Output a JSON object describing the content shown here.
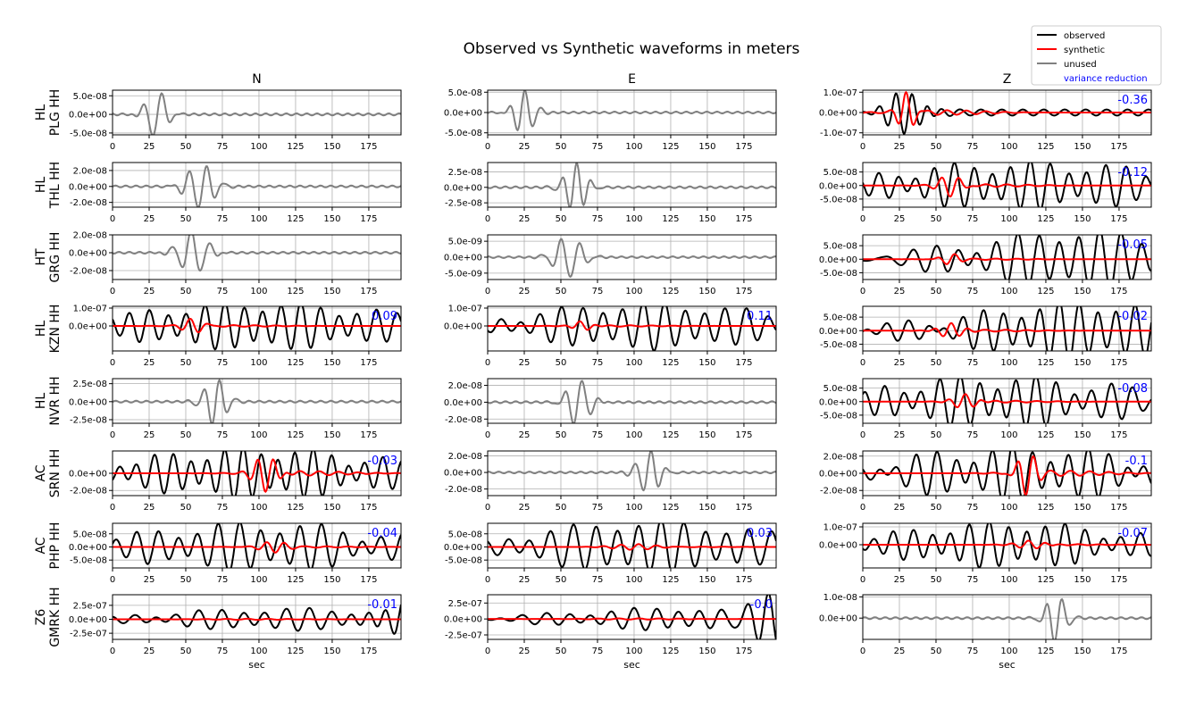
{
  "title": "Observed vs Synthetic waveforms in meters",
  "columns": [
    "N",
    "E",
    "Z"
  ],
  "xlabel": "sec",
  "legend": {
    "placement": "top-right",
    "entries": [
      {
        "label": "observed",
        "color": "#000000"
      },
      {
        "label": "synthetic",
        "color": "#ff0000"
      },
      {
        "label": "unused",
        "color": "#808080"
      },
      {
        "label": "variance reduction",
        "color": "#0000ff",
        "text_only": true
      }
    ]
  },
  "colors": {
    "observed": "#000000",
    "synthetic": "#ff0000",
    "unused": "#808080",
    "variance_reduction": "#0000ff"
  },
  "chart_data": {
    "type": "line",
    "xlim": [
      0,
      197
    ],
    "xticks": [
      0,
      25,
      50,
      75,
      100,
      125,
      150,
      175
    ],
    "grid": true,
    "rows": [
      {
        "network": "HL",
        "station": "PLG HH",
        "panels": [
          {
            "mode": "unused",
            "ylim": [
              -5.5e-08,
              6.5e-08
            ],
            "yticks": [
              {
                "v": 5e-08,
                "t": "5.0e-08"
              },
              {
                "v": 0,
                "t": "0.0e+00"
              },
              {
                "v": -5e-08,
                "t": "-5.0e-08"
              }
            ],
            "vr": "",
            "obs_amp": 6.5e-08,
            "obs_center": 30,
            "obs_width": 9,
            "obs_period": 13,
            "syn_amp": 0
          },
          {
            "mode": "unused",
            "ylim": [
              -5.5e-08,
              5.5e-08
            ],
            "yticks": [
              {
                "v": 5e-08,
                "t": "5.0e-08"
              },
              {
                "v": 0,
                "t": "0.0e+00"
              },
              {
                "v": -5e-08,
                "t": "-5.0e-08"
              }
            ],
            "vr": "",
            "obs_amp": 5.5e-08,
            "obs_center": 25,
            "obs_width": 9,
            "obs_period": 11,
            "syn_amp": 0
          },
          {
            "mode": "used",
            "ylim": [
              -1.1e-07,
              1.1e-07
            ],
            "yticks": [
              {
                "v": 1e-07,
                "t": "1.0e-07"
              },
              {
                "v": 0,
                "t": "0.0e+00"
              },
              {
                "v": -1e-07,
                "t": "-1.0e-07"
              }
            ],
            "vr": "-0.36",
            "obs_amp": 1e-07,
            "obs_center": 30,
            "obs_width": 16,
            "obs_period": 11,
            "obs_bg": 1.5e-08,
            "syn_amp": 9.5e-08,
            "syn_center": 30,
            "syn_width": 7,
            "syn_period": 11
          }
        ]
      },
      {
        "network": "HL",
        "station": "THL HH",
        "panels": [
          {
            "mode": "unused",
            "ylim": [
              -2.6e-08,
              3e-08
            ],
            "yticks": [
              {
                "v": 2e-08,
                "t": "2.0e-08"
              },
              {
                "v": 0,
                "t": "0.0e+00"
              },
              {
                "v": -2e-08,
                "t": "-2.0e-08"
              }
            ],
            "vr": "",
            "obs_amp": 2.8e-08,
            "obs_center": 60,
            "obs_width": 12,
            "obs_period": 12,
            "syn_amp": 0
          },
          {
            "mode": "unused",
            "ylim": [
              -3.2e-08,
              4e-08
            ],
            "yticks": [
              {
                "v": 2.5e-08,
                "t": "2.5e-08"
              },
              {
                "v": 0,
                "t": "0.0e+00"
              },
              {
                "v": -2.5e-08,
                "t": "-2.5e-08"
              }
            ],
            "vr": "",
            "obs_amp": 3.8e-08,
            "obs_center": 60,
            "obs_width": 10,
            "obs_period": 10,
            "syn_amp": 0
          },
          {
            "mode": "used",
            "ylim": [
              -8e-08,
              8.5e-08
            ],
            "yticks": [
              {
                "v": 5e-08,
                "t": "5.0e-08"
              },
              {
                "v": 0,
                "t": "0.0e+00"
              },
              {
                "v": -5e-08,
                "t": "-5.0e-08"
              }
            ],
            "vr": "-0.12",
            "obs_amp": 7e-08,
            "obs_center": 110,
            "obs_width": 120,
            "obs_period": 13,
            "obs_bg": 2.5e-08,
            "syn_amp": 4e-08,
            "syn_center": 60,
            "syn_width": 10,
            "syn_period": 12
          }
        ]
      },
      {
        "network": "HT",
        "station": "GRG HH",
        "panels": [
          {
            "mode": "unused",
            "ylim": [
              -3e-08,
              2e-08
            ],
            "yticks": [
              {
                "v": 2e-08,
                "t": "2.0e-08"
              },
              {
                "v": 0,
                "t": "0.0e+00"
              },
              {
                "v": -2e-08,
                "t": "-2.0e-08"
              }
            ],
            "vr": "",
            "obs_amp": 2.5e-08,
            "obs_center": 55,
            "obs_width": 12,
            "obs_period": 13,
            "syn_amp": 0
          },
          {
            "mode": "unused",
            "ylim": [
              -7e-09,
              7e-09
            ],
            "yticks": [
              {
                "v": 5e-09,
                "t": "5.0e-09"
              },
              {
                "v": 0,
                "t": "0.0e+00"
              },
              {
                "v": -5e-09,
                "t": "-5.0e-09"
              }
            ],
            "vr": "",
            "obs_amp": 6.5e-09,
            "obs_center": 55,
            "obs_width": 12,
            "obs_period": 13,
            "syn_amp": 0
          },
          {
            "mode": "used",
            "ylim": [
              -7.5e-08,
              9e-08
            ],
            "yticks": [
              {
                "v": 5e-08,
                "t": "5.0e-08"
              },
              {
                "v": 0,
                "t": "0.0e+00"
              },
              {
                "v": -5e-08,
                "t": "-5.0e-08"
              }
            ],
            "vr": "-0.05",
            "obs_amp": 9e-08,
            "obs_center": 150,
            "obs_width": 90,
            "obs_period": 14,
            "obs_bg": 2.5e-08,
            "syn_amp": 2e-08,
            "syn_center": 60,
            "syn_width": 8,
            "syn_period": 12
          }
        ]
      },
      {
        "network": "HL",
        "station": "KZN HH",
        "panels": [
          {
            "mode": "used",
            "ylim": [
              -1.4e-07,
              1.1e-07
            ],
            "yticks": [
              {
                "v": 1e-07,
                "t": "1.0e-07"
              },
              {
                "v": 0,
                "t": "0.0e+00"
              }
            ],
            "vr": "0.09",
            "obs_amp": 1.1e-07,
            "obs_center": 100,
            "obs_width": 110,
            "obs_period": 13,
            "obs_bg": 3e-08,
            "syn_amp": 4e-08,
            "syn_center": 55,
            "syn_width": 9,
            "syn_period": 12
          },
          {
            "mode": "used",
            "ylim": [
              -1.4e-07,
              1.1e-07
            ],
            "yticks": [
              {
                "v": 1e-07,
                "t": "1.0e-07"
              },
              {
                "v": 0,
                "t": "0.0e+00"
              }
            ],
            "vr": "0.11",
            "obs_amp": 1.1e-07,
            "obs_center": 110,
            "obs_width": 100,
            "obs_period": 14,
            "obs_bg": 3e-08,
            "syn_amp": 3e-08,
            "syn_center": 65,
            "syn_width": 8,
            "syn_period": 12
          },
          {
            "mode": "used",
            "ylim": [
              -7.5e-08,
              9e-08
            ],
            "yticks": [
              {
                "v": 5e-08,
                "t": "5.0e-08"
              },
              {
                "v": 0,
                "t": "0.0e+00"
              },
              {
                "v": -5e-08,
                "t": "-5.0e-08"
              }
            ],
            "vr": "-0.02",
            "obs_amp": 9e-08,
            "obs_center": 150,
            "obs_width": 90,
            "obs_period": 13,
            "obs_bg": 2.5e-08,
            "syn_amp": 3e-08,
            "syn_center": 60,
            "syn_width": 10,
            "syn_period": 12
          }
        ]
      },
      {
        "network": "HL",
        "station": "NVR HH",
        "panels": [
          {
            "mode": "unused",
            "ylim": [
              -3e-08,
              3.2e-08
            ],
            "yticks": [
              {
                "v": 2.5e-08,
                "t": "2.5e-08"
              },
              {
                "v": 0,
                "t": "0.0e+00"
              },
              {
                "v": -2.5e-08,
                "t": "-2.5e-08"
              }
            ],
            "vr": "",
            "obs_amp": 3.2e-08,
            "obs_center": 70,
            "obs_width": 10,
            "obs_period": 11,
            "syn_amp": 0
          },
          {
            "mode": "unused",
            "ylim": [
              -2.5e-08,
              2.8e-08
            ],
            "yticks": [
              {
                "v": 2e-08,
                "t": "2.0e-08"
              },
              {
                "v": 0,
                "t": "0.0e+00"
              },
              {
                "v": -2e-08,
                "t": "-2.0e-08"
              }
            ],
            "vr": "",
            "obs_amp": 2.8e-08,
            "obs_center": 62,
            "obs_width": 10,
            "obs_period": 12,
            "syn_amp": 0
          },
          {
            "mode": "used",
            "ylim": [
              -8e-08,
              8.5e-08
            ],
            "yticks": [
              {
                "v": 5e-08,
                "t": "5.0e-08"
              },
              {
                "v": 0,
                "t": "0.0e+00"
              },
              {
                "v": -5e-08,
                "t": "-5.0e-08"
              }
            ],
            "vr": "-0.08",
            "obs_amp": 7.5e-08,
            "obs_center": 90,
            "obs_width": 100,
            "obs_period": 13,
            "obs_bg": 3e-08,
            "syn_amp": 3e-08,
            "syn_center": 70,
            "syn_width": 10,
            "syn_period": 12
          }
        ]
      },
      {
        "network": "AC",
        "station": "SRN HH",
        "panels": [
          {
            "mode": "used",
            "ylim": [
              -2.6e-08,
              2.6e-08
            ],
            "yticks": [
              {
                "v": 0,
                "t": "0.0e+00"
              },
              {
                "v": -2e-08,
                "t": "-2.0e-08"
              }
            ],
            "vr": "-0.03",
            "obs_amp": 2.4e-08,
            "obs_center": 100,
            "obs_width": 100,
            "obs_period": 12,
            "obs_bg": 8e-09,
            "syn_amp": 2.2e-08,
            "syn_center": 105,
            "syn_width": 10,
            "syn_period": 11
          },
          {
            "mode": "unused",
            "ylim": [
              -2.8e-08,
              2.6e-08
            ],
            "yticks": [
              {
                "v": 2e-08,
                "t": "2.0e-08"
              },
              {
                "v": 0,
                "t": "0.0e+00"
              },
              {
                "v": -2e-08,
                "t": "-2.0e-08"
              }
            ],
            "vr": "",
            "obs_amp": 2.6e-08,
            "obs_center": 110,
            "obs_width": 10,
            "obs_period": 11,
            "syn_amp": 0
          },
          {
            "mode": "used",
            "ylim": [
              -2.6e-08,
              2.6e-08
            ],
            "yticks": [
              {
                "v": 2e-08,
                "t": "2.0e-08"
              },
              {
                "v": 0,
                "t": "0.0e+00"
              },
              {
                "v": -2e-08,
                "t": "-2.0e-08"
              }
            ],
            "vr": "-0.1",
            "obs_amp": 2.4e-08,
            "obs_center": 110,
            "obs_width": 100,
            "obs_period": 13,
            "obs_bg": 1e-08,
            "syn_amp": 2.5e-08,
            "syn_center": 112,
            "syn_width": 8,
            "syn_period": 11
          }
        ]
      },
      {
        "network": "AC",
        "station": "PHP HH",
        "panels": [
          {
            "mode": "used",
            "ylim": [
              -8e-08,
              9e-08
            ],
            "yticks": [
              {
                "v": 5e-08,
                "t": "5.0e-08"
              },
              {
                "v": 0,
                "t": "0.0e+00"
              },
              {
                "v": -5e-08,
                "t": "-5.0e-08"
              }
            ],
            "vr": "-0.04",
            "obs_amp": 7.5e-08,
            "obs_center": 100,
            "obs_width": 100,
            "obs_period": 14,
            "obs_bg": 2.5e-08,
            "syn_amp": 2e-08,
            "syn_center": 110,
            "syn_width": 12,
            "syn_period": 12
          },
          {
            "mode": "used",
            "ylim": [
              -8e-08,
              9e-08
            ],
            "yticks": [
              {
                "v": 5e-08,
                "t": "5.0e-08"
              },
              {
                "v": 0,
                "t": "0.0e+00"
              },
              {
                "v": -5e-08,
                "t": "-5.0e-08"
              }
            ],
            "vr": "0.03",
            "obs_amp": 8.5e-08,
            "obs_center": 110,
            "obs_width": 100,
            "obs_period": 15,
            "obs_bg": 2e-08,
            "syn_amp": 1e-08,
            "syn_center": 100,
            "syn_width": 20,
            "syn_period": 12
          },
          {
            "mode": "used",
            "ylim": [
              -1.3e-07,
              1.2e-07
            ],
            "yticks": [
              {
                "v": 1e-07,
                "t": "1.0e-07"
              },
              {
                "v": 0,
                "t": "0.0e+00"
              }
            ],
            "vr": "-0.07",
            "obs_amp": 1.05e-07,
            "obs_center": 100,
            "obs_width": 90,
            "obs_period": 13,
            "obs_bg": 3e-08,
            "syn_amp": 2.5e-08,
            "syn_center": 115,
            "syn_width": 12,
            "syn_period": 12
          }
        ]
      },
      {
        "network": "Z6",
        "station": "GMRK HH",
        "panels": [
          {
            "mode": "used",
            "ylim": [
              -3.6e-07,
              4.4e-07
            ],
            "yticks": [
              {
                "v": 2.5e-07,
                "t": "2.5e-07"
              },
              {
                "v": 0,
                "t": "0.0e+00"
              },
              {
                "v": -2.5e-07,
                "t": "-2.5e-07"
              }
            ],
            "vr": "-0.01",
            "obs_amp": 1.6e-07,
            "obs_center": 120,
            "obs_width": 110,
            "obs_period": 15,
            "obs_bg": 5e-08,
            "obs_tail": 4e-07,
            "syn_amp": 1e-08,
            "syn_center": 100,
            "syn_width": 40,
            "syn_period": 14
          },
          {
            "mode": "used",
            "ylim": [
              -3.2e-07,
              3.8e-07
            ],
            "yticks": [
              {
                "v": 2.5e-07,
                "t": "2.5e-07"
              },
              {
                "v": 0,
                "t": "0.0e+00"
              },
              {
                "v": -2.5e-07,
                "t": "-2.5e-07"
              }
            ],
            "vr": "-0.0",
            "obs_amp": 1.5e-07,
            "obs_center": 130,
            "obs_width": 90,
            "obs_period": 15,
            "obs_bg": 4e-08,
            "obs_tail": 3.6e-07,
            "syn_amp": 1e-08,
            "syn_center": 100,
            "syn_width": 40,
            "syn_period": 14
          },
          {
            "mode": "unused",
            "ylim": [
              -1e-08,
              1.1e-08
            ],
            "yticks": [
              {
                "v": 1e-08,
                "t": "1.0e-08"
              },
              {
                "v": 0,
                "t": "0.0e+00"
              }
            ],
            "vr": "",
            "obs_amp": 1.1e-08,
            "obs_center": 132,
            "obs_width": 9,
            "obs_period": 11,
            "syn_amp": 0
          }
        ]
      }
    ]
  }
}
